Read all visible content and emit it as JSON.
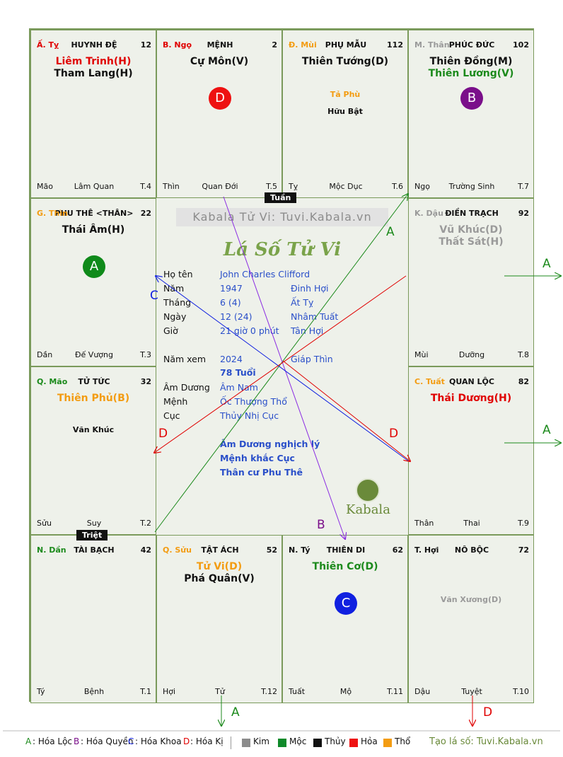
{
  "cells": [
    {
      "id": "ty",
      "col": 0,
      "row": 0,
      "stem": "Ấ. Tỵ",
      "stem_color": "#e00000",
      "name": "HUYNH ĐỆ",
      "num": "12",
      "majors": [
        {
          "text": "Liêm Trinh(H)",
          "color": "#e00000"
        },
        {
          "text": "Tham Lang(H)",
          "color": "#111111"
        }
      ],
      "minors": [],
      "footer_branch": "Mão",
      "footer_mid": "Lâm Quan",
      "footer_t": "T.4"
    },
    {
      "id": "ngo",
      "col": 1,
      "row": 0,
      "stem": "B. Ngọ",
      "stem_color": "#e00000",
      "name": "MỆNH",
      "num": "2",
      "majors": [
        {
          "text": "Cự Môn(V)",
          "color": "#111111"
        }
      ],
      "minors": [],
      "circle": {
        "label": "D",
        "color": "#ee1111"
      },
      "footer_branch": "Thìn",
      "footer_mid": "Quan Đới",
      "footer_t": "T.5"
    },
    {
      "id": "mui",
      "col": 2,
      "row": 0,
      "stem": "Đ. Mùi",
      "stem_color": "#f39c12",
      "name": "PHỤ MẪU",
      "num": "112",
      "majors": [
        {
          "text": "Thiên Tướng(D)",
          "color": "#111111"
        }
      ],
      "minors": [
        {
          "text": "Tả Phù",
          "color": "#f39c12"
        },
        {
          "text": "Hữu Bật",
          "color": "#111111"
        }
      ],
      "footer_branch": "Tỵ",
      "footer_mid": "Mộc Dục",
      "footer_t": "T.6"
    },
    {
      "id": "than",
      "col": 3,
      "row": 0,
      "stem": "M. Thân",
      "stem_color": "#9a9a9a",
      "name": "PHÚC ĐỨC",
      "num": "102",
      "majors": [
        {
          "text": "Thiên Đồng(M)",
          "color": "#111111"
        },
        {
          "text": "Thiên Lương(V)",
          "color": "#1c8a1c"
        }
      ],
      "minors": [],
      "circle": {
        "label": "B",
        "color": "#7a0f8a"
      },
      "footer_branch": "Ngọ",
      "footer_mid": "Trường Sinh",
      "footer_t": "T.7"
    },
    {
      "id": "thin",
      "col": 0,
      "row": 1,
      "stem": "G. Thìn",
      "stem_color": "#f39c12",
      "name": "PHU THÊ <THÂN>",
      "num": "22",
      "majors": [
        {
          "text": "Thái Âm(H)",
          "color": "#111111"
        }
      ],
      "minors": [],
      "circle": {
        "label": "A",
        "color": "#0f8a1a"
      },
      "footer_branch": "Dần",
      "footer_mid": "Đế Vượng",
      "footer_t": "T.3"
    },
    {
      "id": "dau",
      "col": 3,
      "row": 1,
      "stem": "K. Dậu",
      "stem_color": "#9a9a9a",
      "name": "ĐIỀN TRẠCH",
      "num": "92",
      "majors": [
        {
          "text": "Vũ Khúc(D)",
          "color": "#9a9a9a"
        },
        {
          "text": "Thất Sát(H)",
          "color": "#9a9a9a"
        }
      ],
      "minors": [],
      "footer_branch": "Mùi",
      "footer_mid": "Dưỡng",
      "footer_t": "T.8"
    },
    {
      "id": "mao",
      "col": 0,
      "row": 2,
      "stem": "Q. Mão",
      "stem_color": "#1c8a1c",
      "name": "TỬ TỨC",
      "num": "32",
      "majors": [
        {
          "text": "Thiên Phủ(B)",
          "color": "#f39c12"
        }
      ],
      "minors": [
        {
          "text": "Văn Khúc",
          "color": "#111111"
        }
      ],
      "footer_branch": "Sửu",
      "footer_mid": "Suy",
      "footer_t": "T.2"
    },
    {
      "id": "tuat",
      "col": 3,
      "row": 2,
      "stem": "C. Tuất",
      "stem_color": "#f39c12",
      "name": "QUAN LỘC",
      "num": "82",
      "majors": [
        {
          "text": "Thái Dương(H)",
          "color": "#e00000"
        }
      ],
      "minors": [],
      "footer_branch": "Thân",
      "footer_mid": "Thai",
      "footer_t": "T.9"
    },
    {
      "id": "dan",
      "col": 0,
      "row": 3,
      "stem": "N. Dần",
      "stem_color": "#1c8a1c",
      "name": "TÀI BẠCH",
      "num": "42",
      "majors": [],
      "minors": [],
      "footer_branch": "Tý",
      "footer_mid": "Bệnh",
      "footer_t": "T.1"
    },
    {
      "id": "suu",
      "col": 1,
      "row": 3,
      "stem": "Q. Sửu",
      "stem_color": "#f39c12",
      "name": "TẬT ÁCH",
      "num": "52",
      "majors": [
        {
          "text": "Tử Vi(D)",
          "color": "#f39c12"
        },
        {
          "text": "Phá Quân(V)",
          "color": "#111111"
        }
      ],
      "minors": [],
      "footer_branch": "Hợi",
      "footer_mid": "Tử",
      "footer_t": "T.12"
    },
    {
      "id": "tyx",
      "col": 2,
      "row": 3,
      "stem": "N. Tý",
      "stem_color": "#111111",
      "name": "THIÊN DI",
      "num": "62",
      "majors": [
        {
          "text": "Thiên Cơ(D)",
          "color": "#1c8a1c"
        }
      ],
      "minors": [],
      "circle": {
        "label": "C",
        "color": "#1020e0"
      },
      "footer_branch": "Tuất",
      "footer_mid": "Mộ",
      "footer_t": "T.11"
    },
    {
      "id": "hoi",
      "col": 3,
      "row": 3,
      "stem": "T. Hợi",
      "stem_color": "#111111",
      "name": "NÔ BỘC",
      "num": "72",
      "majors": [],
      "minors": [
        {
          "text": "Văn Xương(D)",
          "color": "#9a9a9a"
        }
      ],
      "footer_branch": "Dậu",
      "footer_mid": "Tuyệt",
      "footer_t": "T.10"
    }
  ],
  "center": {
    "site_banner": "Kabala Tử Vi: Tuvi.Kabala.vn",
    "title": "Lá Số Tử Vi",
    "rows": [
      {
        "label": "Họ tên",
        "v1": "John Charles Clifford",
        "v2": ""
      },
      {
        "label": "Năm",
        "v1": "1947",
        "v2": "Đinh Hợi"
      },
      {
        "label": "Tháng",
        "v1": "6  (4)",
        "v2": "Ất Tỵ"
      },
      {
        "label": "Ngày",
        "v1": "12  (24)",
        "v2": "Nhâm Tuất"
      },
      {
        "label": "Giờ",
        "v1": "21 giờ 0 phút",
        "v2": "Tân Hợi"
      }
    ],
    "nam_xem_label": "Năm xem",
    "nam_xem": "2024",
    "nam_xem_can": "Giáp Thìn",
    "tuoi": "78 Tuổi",
    "rows2": [
      {
        "label": "Âm Dương",
        "v1": "Âm Nam"
      },
      {
        "label": "Mệnh",
        "v1": "Ốc Thượng Thổ"
      },
      {
        "label": "Cục",
        "v1": "Thủy Nhị Cục"
      }
    ],
    "notes": [
      "Âm Dương nghịch lý",
      "Mệnh khắc Cục",
      "Thân cư Phu Thê"
    ],
    "logo_text": "Kabala"
  },
  "tags": {
    "tuan": "Tuần",
    "triet": "Triệt"
  },
  "arrows": {
    "a": "A",
    "b": "B",
    "c": "C",
    "d": "D"
  },
  "legend": {
    "hoa": [
      {
        "key": "A",
        "text": ": Hóa Lộc",
        "color": "#1c8a1c"
      },
      {
        "key": "B",
        "text": ": Hóa Quyền",
        "color": "#7a0f8a"
      },
      {
        "key": "C",
        "text": ": Hóa Khoa",
        "color": "#1020e0"
      },
      {
        "key": "D",
        "text": ": Hóa Kị",
        "color": "#e00000"
      }
    ],
    "elements": [
      {
        "name": "Kim",
        "color": "#8c8c8c"
      },
      {
        "name": "Mộc",
        "color": "#0f8a2a"
      },
      {
        "name": "Thủy",
        "color": "#111111"
      },
      {
        "name": "Hỏa",
        "color": "#ee1111"
      },
      {
        "name": "Thổ",
        "color": "#f39c12"
      }
    ],
    "credit": "Tạo lá số: Tuvi.Kabala.vn"
  }
}
